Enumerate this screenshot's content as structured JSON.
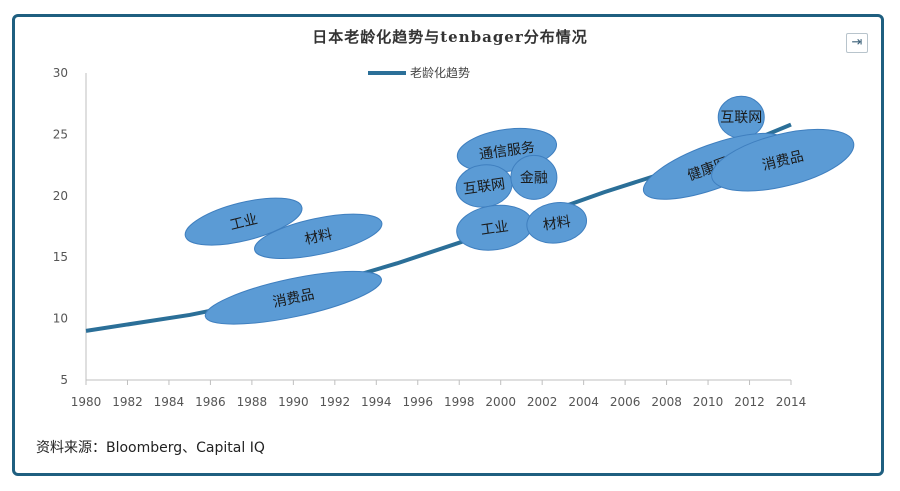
{
  "window": {
    "expand_icon": "expand-icon"
  },
  "chart_data": {
    "type": "line",
    "title": "日本老龄化趋势与tenbager分布情况",
    "legend": [
      "老龄化趋势"
    ],
    "legend_position": "top-center",
    "x_ticks": [
      "1980",
      "1982",
      "1984",
      "1986",
      "1988",
      "1990",
      "1992",
      "1994",
      "1996",
      "1998",
      "2000",
      "2002",
      "2004",
      "2006",
      "2008",
      "2010",
      "2012",
      "2014"
    ],
    "y_ticks": [
      "5",
      "10",
      "15",
      "20",
      "25",
      "30"
    ],
    "xlim": [
      1980,
      2014
    ],
    "ylim": [
      5,
      30
    ],
    "grid": false,
    "series": [
      {
        "name": "老龄化趋势",
        "color": "#2b6f98",
        "x": [
          1980,
          1985,
          1990,
          1995,
          2000,
          2005,
          2010,
          2014
        ],
        "y": [
          9.0,
          10.3,
          12.0,
          14.5,
          17.3,
          20.3,
          23.0,
          25.8
        ]
      }
    ],
    "annotations": [
      {
        "label": "工业",
        "x": 1987.6,
        "y": 17.9,
        "rx": 60,
        "ry": 19,
        "rotate": -14
      },
      {
        "label": "材料",
        "x": 1991.2,
        "y": 16.7,
        "rx": 65,
        "ry": 18,
        "rotate": -12
      },
      {
        "label": "消费品",
        "x": 1990.0,
        "y": 11.7,
        "rx": 90,
        "ry": 19,
        "rotate": -12
      },
      {
        "label": "通信服务",
        "x": 2000.3,
        "y": 23.7,
        "rx": 50,
        "ry": 21,
        "rotate": -8
      },
      {
        "label": "互联网",
        "x": 1999.2,
        "y": 20.8,
        "rx": 28,
        "ry": 21,
        "rotate": -8
      },
      {
        "label": "金融",
        "x": 2001.6,
        "y": 21.5,
        "rx": 23,
        "ry": 22,
        "rotate": 0
      },
      {
        "label": "工业",
        "x": 1999.7,
        "y": 17.4,
        "rx": 38,
        "ry": 22,
        "rotate": -8
      },
      {
        "label": "材料",
        "x": 2002.7,
        "y": 17.8,
        "rx": 30,
        "ry": 20,
        "rotate": -8
      },
      {
        "label": "互联网",
        "x": 2011.6,
        "y": 26.4,
        "rx": 23,
        "ry": 21,
        "rotate": 0
      },
      {
        "label": "健康医疗",
        "x": 2010.3,
        "y": 22.4,
        "rx": 75,
        "ry": 22,
        "rotate": -20
      },
      {
        "label": "消费品",
        "x": 2013.6,
        "y": 22.9,
        "rx": 73,
        "ry": 26,
        "rotate": -14
      }
    ],
    "bubble_color": "#5b9bd5",
    "source": "资料来源：Bloomberg、Capital IQ"
  }
}
